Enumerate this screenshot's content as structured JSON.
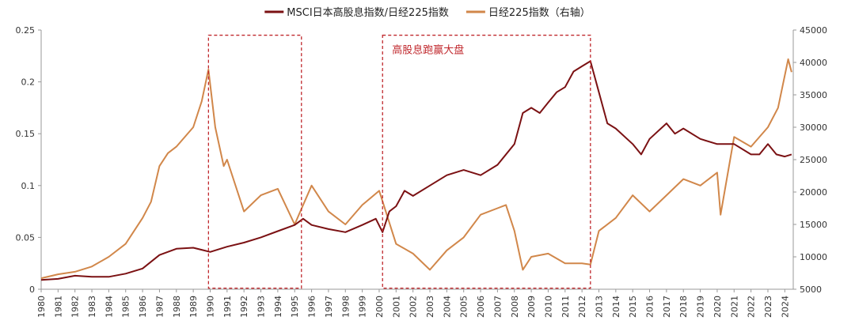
{
  "chart_data": {
    "type": "line",
    "legend": {
      "placement": "top-center"
    },
    "grid": false,
    "x_axis": {
      "range": [
        1980,
        2024.5
      ],
      "ticks": [
        "1980",
        "1981",
        "1982",
        "1983",
        "1984",
        "1985",
        "1986",
        "1987",
        "1988",
        "1989",
        "1990",
        "1991",
        "1992",
        "1993",
        "1994",
        "1995",
        "1996",
        "1997",
        "1998",
        "1999",
        "2000",
        "2001",
        "2002",
        "2003",
        "2004",
        "2005",
        "2006",
        "2007",
        "2008",
        "2009",
        "2010",
        "2011",
        "2012",
        "2013",
        "2014",
        "2015",
        "2016",
        "2017",
        "2018",
        "2019",
        "2020",
        "2021",
        "2022",
        "2023",
        "2024"
      ]
    },
    "y_left": {
      "range": [
        0,
        0.25
      ],
      "ticks": [
        "0",
        "0.05",
        "0.1",
        "0.15",
        "0.2",
        "0.25"
      ]
    },
    "y_right": {
      "range": [
        5000,
        45000
      ],
      "ticks": [
        "5000",
        "10000",
        "15000",
        "20000",
        "25000",
        "30000",
        "35000",
        "40000",
        "45000"
      ]
    },
    "series": [
      {
        "name": "MSCI日本高股息指数/日经225指数",
        "axis": "left",
        "color": "#7b1113",
        "points": [
          [
            1980,
            0.009
          ],
          [
            1981,
            0.01
          ],
          [
            1982,
            0.013
          ],
          [
            1983,
            0.012
          ],
          [
            1984,
            0.012
          ],
          [
            1985,
            0.015
          ],
          [
            1986,
            0.02
          ],
          [
            1987,
            0.033
          ],
          [
            1988,
            0.039
          ],
          [
            1989,
            0.04
          ],
          [
            1990,
            0.036
          ],
          [
            1991,
            0.041
          ],
          [
            1992,
            0.045
          ],
          [
            1993,
            0.05
          ],
          [
            1994,
            0.056
          ],
          [
            1995,
            0.062
          ],
          [
            1995.5,
            0.068
          ],
          [
            1996,
            0.062
          ],
          [
            1997,
            0.058
          ],
          [
            1998,
            0.055
          ],
          [
            1999,
            0.062
          ],
          [
            1999.8,
            0.068
          ],
          [
            2000.2,
            0.055
          ],
          [
            2000.6,
            0.075
          ],
          [
            2001,
            0.08
          ],
          [
            2001.5,
            0.095
          ],
          [
            2002,
            0.09
          ],
          [
            2003,
            0.1
          ],
          [
            2004,
            0.11
          ],
          [
            2005,
            0.115
          ],
          [
            2006,
            0.11
          ],
          [
            2007,
            0.12
          ],
          [
            2008,
            0.14
          ],
          [
            2008.5,
            0.17
          ],
          [
            2009,
            0.175
          ],
          [
            2009.5,
            0.17
          ],
          [
            2010,
            0.18
          ],
          [
            2010.5,
            0.19
          ],
          [
            2011,
            0.195
          ],
          [
            2011.5,
            0.21
          ],
          [
            2012,
            0.215
          ],
          [
            2012.5,
            0.22
          ],
          [
            2013,
            0.19
          ],
          [
            2013.5,
            0.16
          ],
          [
            2014,
            0.155
          ],
          [
            2015,
            0.14
          ],
          [
            2015.5,
            0.13
          ],
          [
            2016,
            0.145
          ],
          [
            2017,
            0.16
          ],
          [
            2017.5,
            0.15
          ],
          [
            2018,
            0.155
          ],
          [
            2019,
            0.145
          ],
          [
            2020,
            0.14
          ],
          [
            2021,
            0.14
          ],
          [
            2022,
            0.13
          ],
          [
            2022.5,
            0.13
          ],
          [
            2023,
            0.14
          ],
          [
            2023.5,
            0.13
          ],
          [
            2024,
            0.128
          ],
          [
            2024.4,
            0.13
          ]
        ]
      },
      {
        "name": "日经225指数（右轴）",
        "axis": "right",
        "color": "#d1874a",
        "points": [
          [
            1980,
            6700
          ],
          [
            1981,
            7300
          ],
          [
            1982,
            7700
          ],
          [
            1983,
            8500
          ],
          [
            1984,
            10000
          ],
          [
            1985,
            12000
          ],
          [
            1986,
            16000
          ],
          [
            1986.5,
            18500
          ],
          [
            1987,
            24000
          ],
          [
            1987.5,
            26000
          ],
          [
            1988,
            27000
          ],
          [
            1989,
            30000
          ],
          [
            1989.5,
            34000
          ],
          [
            1989.9,
            38900
          ],
          [
            1990.3,
            30000
          ],
          [
            1990.8,
            24000
          ],
          [
            1991,
            25000
          ],
          [
            1992,
            17000
          ],
          [
            1993,
            19500
          ],
          [
            1994,
            20500
          ],
          [
            1995,
            15000
          ],
          [
            1996,
            21000
          ],
          [
            1997,
            17000
          ],
          [
            1998,
            15000
          ],
          [
            1999,
            18000
          ],
          [
            2000,
            20200
          ],
          [
            2001,
            12000
          ],
          [
            2002,
            10500
          ],
          [
            2003,
            8000
          ],
          [
            2004,
            11000
          ],
          [
            2005,
            13000
          ],
          [
            2006,
            16500
          ],
          [
            2007,
            17500
          ],
          [
            2007.5,
            18000
          ],
          [
            2008,
            14000
          ],
          [
            2008.5,
            8000
          ],
          [
            2009,
            10000
          ],
          [
            2010,
            10500
          ],
          [
            2011,
            9000
          ],
          [
            2012,
            9000
          ],
          [
            2012.5,
            8800
          ],
          [
            2013,
            14000
          ],
          [
            2014,
            16000
          ],
          [
            2015,
            19500
          ],
          [
            2016,
            17000
          ],
          [
            2017,
            19500
          ],
          [
            2018,
            22000
          ],
          [
            2019,
            21000
          ],
          [
            2020,
            23000
          ],
          [
            2020.2,
            16500
          ],
          [
            2021,
            28500
          ],
          [
            2022,
            27000
          ],
          [
            2023,
            30000
          ],
          [
            2023.6,
            33000
          ],
          [
            2024.2,
            40500
          ],
          [
            2024.4,
            38500
          ]
        ]
      }
    ],
    "annotations": [
      {
        "label": "",
        "x_range": [
          1989.9,
          1995.4
        ],
        "y_range": [
          0.001,
          0.245
        ]
      },
      {
        "label": "高股息跑赢大盘",
        "x_range": [
          2000.2,
          2012.5
        ],
        "y_range": [
          0.001,
          0.245
        ]
      }
    ]
  }
}
